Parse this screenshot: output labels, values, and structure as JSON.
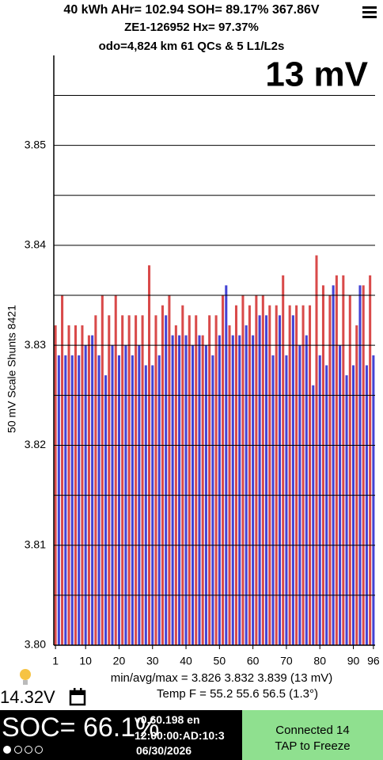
{
  "header": {
    "line1": "40 kWh  AHr= 102.94 SOH= 89.17% 367.86V",
    "line2": "ZE1-126952   Hx= 97.37%",
    "line3": "odo=4,824 km 61 QCs & 5 L1/L2s"
  },
  "chart_data": {
    "type": "bar",
    "title": "13 mV",
    "y_label": "50 mV Scale   Shunts 8421",
    "categories": [
      "1",
      null,
      null,
      null,
      null,
      null,
      null,
      null,
      null,
      "10",
      null,
      null,
      null,
      null,
      null,
      null,
      null,
      null,
      null,
      "20",
      null,
      null,
      null,
      null,
      null,
      null,
      null,
      null,
      null,
      "30",
      null,
      null,
      null,
      null,
      null,
      null,
      null,
      null,
      null,
      "40",
      null,
      null,
      null,
      null,
      null,
      null,
      null,
      null,
      null,
      "50",
      null,
      null,
      null,
      null,
      null,
      null,
      null,
      null,
      null,
      "60",
      null,
      null,
      null,
      null,
      null,
      null,
      null,
      null,
      null,
      "70",
      null,
      null,
      null,
      null,
      null,
      null,
      null,
      null,
      null,
      "80",
      null,
      null,
      null,
      null,
      null,
      null,
      null,
      null,
      null,
      "90",
      null,
      null,
      null,
      null,
      null,
      "96"
    ],
    "values": [
      3.832,
      3.829,
      3.835,
      3.829,
      3.832,
      3.829,
      3.832,
      3.829,
      3.832,
      3.83,
      3.831,
      3.831,
      3.833,
      3.829,
      3.835,
      3.827,
      3.833,
      3.83,
      3.835,
      3.829,
      3.833,
      3.83,
      3.833,
      3.829,
      3.833,
      3.83,
      3.833,
      3.828,
      3.838,
      3.828,
      3.833,
      3.829,
      3.834,
      3.833,
      3.835,
      3.831,
      3.832,
      3.831,
      3.834,
      3.831,
      3.833,
      3.83,
      3.833,
      3.831,
      3.831,
      3.83,
      3.833,
      3.829,
      3.833,
      3.831,
      3.835,
      3.836,
      3.832,
      3.831,
      3.834,
      3.831,
      3.835,
      3.832,
      3.834,
      3.831,
      3.835,
      3.833,
      3.835,
      3.833,
      3.834,
      3.829,
      3.834,
      3.833,
      3.837,
      3.829,
      3.834,
      3.833,
      3.834,
      3.83,
      3.834,
      3.831,
      3.834,
      3.826,
      3.839,
      3.829,
      3.836,
      3.828,
      3.835,
      3.836,
      3.837,
      3.83,
      3.837,
      3.827,
      3.835,
      3.828,
      3.832,
      3.836,
      3.836,
      3.828,
      3.837,
      3.829
    ],
    "bar_colors": [
      "#d94a4a",
      "#4343d4"
    ],
    "ylim": [
      3.8,
      3.859
    ],
    "yticks": [
      {
        "value": 3.8,
        "label": "3.80"
      },
      {
        "value": 3.81,
        "label": "3.81"
      },
      {
        "value": 3.82,
        "label": "3.82"
      },
      {
        "value": 3.83,
        "label": "3.83"
      },
      {
        "value": 3.84,
        "label": "3.84"
      },
      {
        "value": 3.85,
        "label": "3.85"
      }
    ],
    "ygrid_minor": [
      3.805,
      3.815,
      3.825,
      3.835,
      3.845,
      3.855
    ],
    "grid": true
  },
  "stats": {
    "minavgmax": "min/avg/max = 3.826 3.832 3.839  (13 mV)",
    "temp": "Temp F = 55.2  55.6  56.5  (1.3°)",
    "voltage": "14.32V"
  },
  "footer": {
    "soc": "SOC= 66.1%",
    "version": "v0.60.198 en",
    "mac": "12:00:00:AD:10:3",
    "date": "06/30/2026",
    "connected": "Connected 14",
    "tap": "TAP to Freeze"
  }
}
